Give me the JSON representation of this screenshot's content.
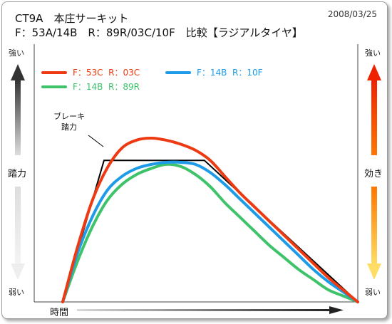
{
  "header": {
    "title_line1": "CT9A　本庄サーキット",
    "title_line2": "F：53A/14B　R：89R/03C/10F　比較【ラジアルタイヤ】",
    "date": "2008/03/25"
  },
  "left_axis": {
    "top": "強い",
    "middle": "踏力",
    "bottom": "弱い"
  },
  "right_axis": {
    "top": "強い",
    "middle": "効き",
    "bottom": "弱い"
  },
  "x_axis_label": "時間",
  "annotation": {
    "line1": "ブレーキ",
    "line2": "踏力"
  },
  "colors": {
    "red": "#ee3a12",
    "blue": "#1e9be8",
    "green": "#3ec36a",
    "black": "#000000",
    "arrow_dark": "#333333",
    "arrow_light": "#dddddd",
    "arrow_red": "#ee2200",
    "arrow_orange": "#ff7700",
    "arrow_yellow": "#ffdd66"
  },
  "chart_data": {
    "type": "line",
    "title": "CT9A　本庄サーキット",
    "xlabel": "時間",
    "ylabel_left": "踏力",
    "ylabel_right": "効き",
    "xlim": [
      0,
      100
    ],
    "ylim": [
      0,
      100
    ],
    "grid": false,
    "legend_position": "top-left",
    "series": [
      {
        "name": "F：53C  R：03C",
        "color": "#ee3a12",
        "x": [
          0,
          5,
          10,
          15,
          20,
          25,
          30,
          35,
          40,
          45,
          50,
          55,
          60,
          65,
          70,
          75,
          80,
          85,
          90,
          95,
          100
        ],
        "y": [
          0,
          27,
          50,
          66,
          76,
          80,
          81,
          80,
          78,
          75,
          70,
          62,
          54,
          47,
          40,
          33,
          26,
          19,
          12,
          6,
          0
        ]
      },
      {
        "name": "F：14B  R：10F",
        "color": "#1e9be8",
        "x": [
          0,
          5,
          10,
          15,
          20,
          25,
          30,
          35,
          40,
          45,
          50,
          55,
          60,
          65,
          70,
          75,
          80,
          85,
          90,
          95,
          100
        ],
        "y": [
          0,
          24,
          42,
          55,
          62,
          66,
          68,
          69,
          69,
          68,
          64,
          58,
          51,
          44,
          37,
          30,
          23,
          16,
          10,
          5,
          0
        ]
      },
      {
        "name": "F：14B  R：89R",
        "color": "#3ec36a",
        "x": [
          0,
          5,
          10,
          15,
          20,
          25,
          30,
          35,
          40,
          45,
          50,
          55,
          60,
          65,
          70,
          75,
          80,
          85,
          90,
          95,
          100
        ],
        "y": [
          0,
          20,
          37,
          50,
          58,
          63,
          66,
          68,
          67,
          63,
          57,
          49,
          42,
          35,
          28,
          22,
          16,
          11,
          6,
          3,
          0
        ]
      }
    ],
    "pedal_force": {
      "name": "ブレーキ踏力",
      "x": [
        0,
        14,
        48,
        100
      ],
      "y": [
        0,
        70,
        70,
        0
      ]
    }
  }
}
